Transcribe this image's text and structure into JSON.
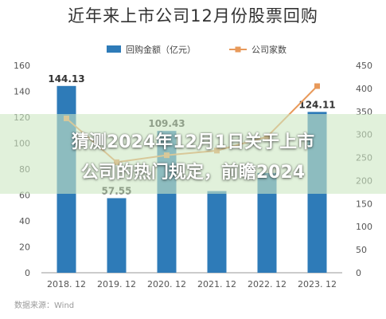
{
  "chart_data": {
    "type": "bar",
    "title": "近年来上市公司12月份股票回购",
    "categories": [
      "2018. 12",
      "2019. 12",
      "2020. 12",
      "2021. 12",
      "2022. 12",
      "2023. 12"
    ],
    "series": [
      {
        "name": "回购金额（亿元）",
        "type": "bar",
        "axis": "left",
        "color": "#2e7bb8",
        "values": [
          144.13,
          57.55,
          109.43,
          63,
          77,
          124.11
        ],
        "labels": [
          "144.13",
          "57.55",
          "109.43",
          "",
          "",
          "124.11"
        ]
      },
      {
        "name": "公司家数",
        "type": "line",
        "axis": "right",
        "color": "#e8995a",
        "values": [
          335,
          240,
          255,
          265,
          295,
          405
        ]
      }
    ],
    "y_left": {
      "range": [
        0,
        160
      ],
      "ticks": [
        "0",
        "20",
        "40",
        "60",
        "80",
        "100",
        "120",
        "140",
        "160"
      ]
    },
    "y_right": {
      "range": [
        0,
        450
      ],
      "ticks": [
        "0",
        "50",
        "100",
        "150",
        "200",
        "250",
        "300",
        "350",
        "400",
        "450"
      ]
    },
    "grid": "none",
    "legend": "top-center"
  },
  "overlay": {
    "lines": [
      "猜测2024年12月1日关于上市",
      "公司的热门规定，前瞻2024"
    ]
  },
  "source": "数据来源：Wind"
}
